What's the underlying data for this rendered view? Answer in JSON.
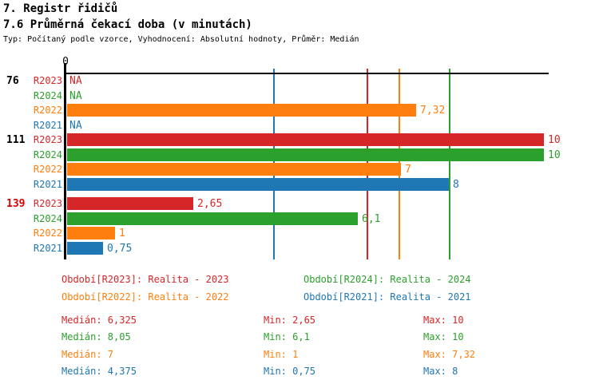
{
  "header": {
    "title": "7. Registr řidičů",
    "subtitle": "7.6 Průměrná čekací doba (v minutách)",
    "meta": "Typ: Počítaný podle vzorce, Vyhodnocení: Absolutní hodnoty, Průměr: Medián"
  },
  "colors": {
    "R2023": "#d62728",
    "R2024": "#2ca02c",
    "R2022": "#ff7f0e",
    "R2021": "#1f77b4",
    "axis": "#000000",
    "group_label_default": "#000000",
    "group_label_highlight": "#dd0000"
  },
  "chart_data": {
    "type": "bar",
    "orientation": "horizontal",
    "title": "7.6 Průměrná čekací doba (v minutách)",
    "xlabel": "",
    "ylabel": "",
    "xlim": [
      0,
      10.15
    ],
    "axis": {
      "origin_label": "0"
    },
    "legend_position": "bottom",
    "series_order": [
      "R2023",
      "R2024",
      "R2022",
      "R2021"
    ],
    "groups": [
      {
        "label": "76",
        "label_color": "#000000",
        "bars": [
          {
            "series": "R2023",
            "value": null,
            "display": "NA"
          },
          {
            "series": "R2024",
            "value": null,
            "display": "NA"
          },
          {
            "series": "R2022",
            "value": 7.32,
            "display": "7,32"
          },
          {
            "series": "R2021",
            "value": null,
            "display": "NA"
          }
        ]
      },
      {
        "label": "111",
        "label_color": "#000000",
        "bars": [
          {
            "series": "R2023",
            "value": 10,
            "display": "10"
          },
          {
            "series": "R2024",
            "value": 10,
            "display": "10"
          },
          {
            "series": "R2022",
            "value": 7,
            "display": "7"
          },
          {
            "series": "R2021",
            "value": 8,
            "display": "8"
          }
        ]
      },
      {
        "label": "139",
        "label_color": "#dd0000",
        "bars": [
          {
            "series": "R2023",
            "value": 2.65,
            "display": "2,65"
          },
          {
            "series": "R2024",
            "value": 6.1,
            "display": "6,1"
          },
          {
            "series": "R2022",
            "value": 1,
            "display": "1"
          },
          {
            "series": "R2021",
            "value": 0.75,
            "display": "0,75"
          }
        ]
      }
    ],
    "median_lines": [
      {
        "series": "R2021",
        "value": 4.375
      },
      {
        "series": "R2023",
        "value": 6.325
      },
      {
        "series": "R2022",
        "value": 7
      },
      {
        "series": "R2024",
        "value": 8.05
      }
    ]
  },
  "legend": [
    {
      "series": "R2023",
      "label": "Období[R2023]: Realita - 2023"
    },
    {
      "series": "R2024",
      "label": "Období[R2024]: Realita - 2024"
    },
    {
      "series": "R2022",
      "label": "Období[R2022]: Realita - 2022"
    },
    {
      "series": "R2021",
      "label": "Období[R2021]: Realita - 2021"
    }
  ],
  "stats": [
    {
      "series": "R2023",
      "median": "Medián: 6,325",
      "min": "Min: 2,65",
      "max": "Max: 10"
    },
    {
      "series": "R2024",
      "median": "Medián: 8,05",
      "min": "Min: 6,1",
      "max": "Max: 10"
    },
    {
      "series": "R2022",
      "median": "Medián: 7",
      "min": "Min: 1",
      "max": "Max: 7,32"
    },
    {
      "series": "R2021",
      "median": "Medián: 4,375",
      "min": "Min: 0,75",
      "max": "Max: 8"
    }
  ]
}
